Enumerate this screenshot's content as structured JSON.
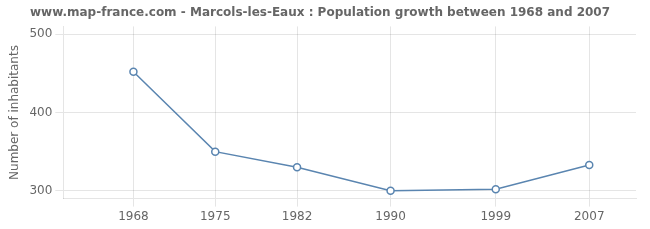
{
  "chart_data": {
    "type": "line",
    "title": "www.map-france.com - Marcols-les-Eaux : Population growth between 1968 and 2007",
    "ylabel": "Number of inhabitants",
    "x": [
      1968,
      1975,
      1982,
      1990,
      1999,
      2007
    ],
    "values": [
      452,
      350,
      330,
      300,
      302,
      333
    ],
    "xlim": [
      1962,
      2011
    ],
    "xticks": [
      1968,
      1975,
      1982,
      1990,
      1999,
      2007
    ],
    "ylim": [
      290,
      510
    ],
    "yticks": [
      300,
      400,
      500
    ],
    "grid": true,
    "color": "#5a85b0",
    "marker": "circle"
  }
}
